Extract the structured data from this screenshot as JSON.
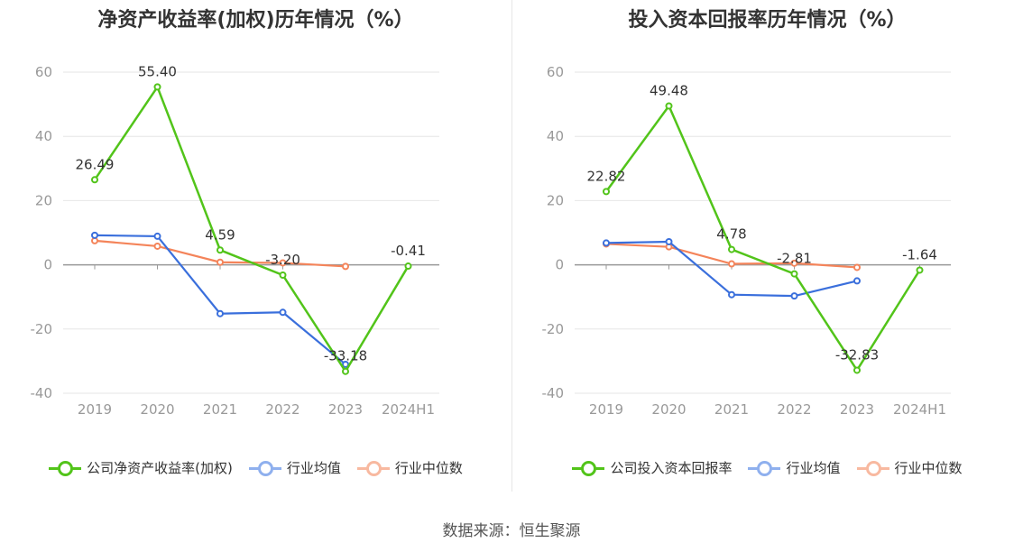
{
  "source_text": "数据来源：恒生聚源",
  "colors": {
    "company": "#52c41a",
    "industry_avg": "#3a6fdc",
    "industry_median": "#f4845a",
    "grid": "#e6e6e6",
    "axis": "#999999",
    "text": "#333333"
  },
  "chart_data": [
    {
      "type": "line",
      "title": "净资产收益率(加权)历年情况（%）",
      "categories": [
        "2019",
        "2020",
        "2021",
        "2022",
        "2023",
        "2024H1"
      ],
      "ylim": [
        -40,
        60
      ],
      "yticks": [
        -40,
        -20,
        0,
        20,
        40,
        60
      ],
      "grid": true,
      "legend_position": "bottom",
      "series": [
        {
          "name": "公司净资产收益率(加权)",
          "key": "company",
          "values": [
            26.49,
            55.4,
            4.59,
            -3.2,
            -33.18,
            -0.41
          ],
          "labels": [
            "26.49",
            "55.40",
            "4.59",
            "-3.20",
            "-33.18",
            "-0.41"
          ]
        },
        {
          "name": "行业均值",
          "key": "industry_avg",
          "values": [
            9.2,
            8.9,
            -15.2,
            -14.8,
            -31.0,
            null
          ]
        },
        {
          "name": "行业中位数",
          "key": "industry_median",
          "values": [
            7.5,
            5.8,
            0.8,
            0.6,
            -0.5,
            null
          ]
        }
      ]
    },
    {
      "type": "line",
      "title": "投入资本回报率历年情况（%）",
      "categories": [
        "2019",
        "2020",
        "2021",
        "2022",
        "2023",
        "2024H1"
      ],
      "ylim": [
        -40,
        60
      ],
      "yticks": [
        -40,
        -20,
        0,
        20,
        40,
        60
      ],
      "grid": true,
      "legend_position": "bottom",
      "series": [
        {
          "name": "公司投入资本回报率",
          "key": "company",
          "values": [
            22.82,
            49.48,
            4.78,
            -2.81,
            -32.83,
            -1.64
          ],
          "labels": [
            "22.82",
            "49.48",
            "4.78",
            "-2.81",
            "-32.83",
            "-1.64"
          ]
        },
        {
          "name": "行业均值",
          "key": "industry_avg",
          "values": [
            6.8,
            7.2,
            -9.3,
            -9.7,
            -5.0,
            null
          ]
        },
        {
          "name": "行业中位数",
          "key": "industry_median",
          "values": [
            6.5,
            5.6,
            0.3,
            0.5,
            -0.8,
            null
          ]
        }
      ]
    }
  ]
}
